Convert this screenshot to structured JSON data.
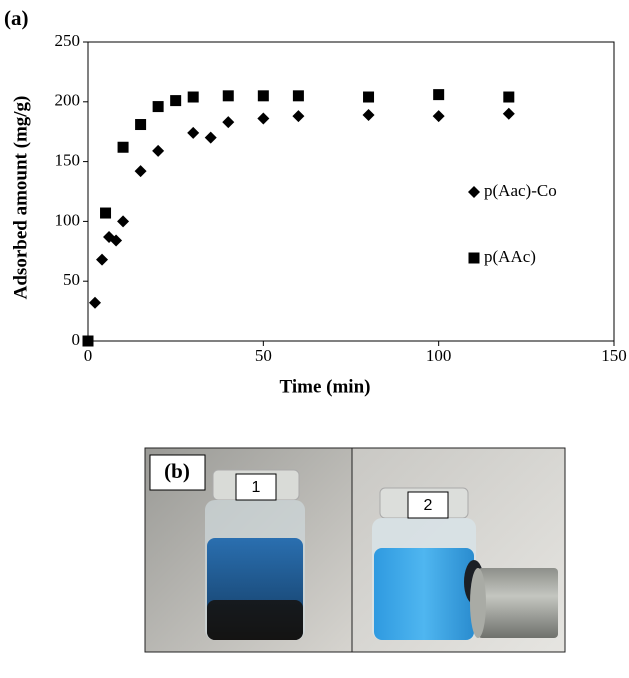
{
  "chart_data": {
    "type": "scatter",
    "xlabel": "Time (min)",
    "ylabel": "Adsorbed amount (mg/g)",
    "xlim": [
      0,
      150
    ],
    "xticks": [
      0,
      50,
      100,
      150
    ],
    "ylim": [
      0,
      250
    ],
    "yticks": [
      0,
      50,
      100,
      150,
      200,
      250
    ],
    "grid": false,
    "legend": "right",
    "series": [
      {
        "name": "p(Aac)-Co",
        "color": "#000000",
        "marker": "diamond",
        "x": [
          2,
          4,
          6,
          8,
          10,
          15,
          20,
          30,
          35,
          40,
          50,
          60,
          80,
          100,
          120
        ],
        "values": [
          32,
          68,
          87,
          84,
          100,
          142,
          159,
          174,
          170,
          183,
          186,
          188,
          189,
          188,
          190
        ]
      },
      {
        "name": "p(AAc)",
        "color": "#000000",
        "marker": "square",
        "x": [
          0,
          5,
          10,
          15,
          20,
          25,
          30,
          40,
          50,
          60,
          80,
          100,
          120
        ],
        "values": [
          0,
          107,
          162,
          181,
          196,
          201,
          204,
          205,
          205,
          205,
          204,
          206,
          204
        ]
      }
    ]
  },
  "panel_labels": [
    "(a)",
    "(b)"
  ],
  "photo": {
    "vial_labels": [
      "1",
      "2"
    ]
  }
}
